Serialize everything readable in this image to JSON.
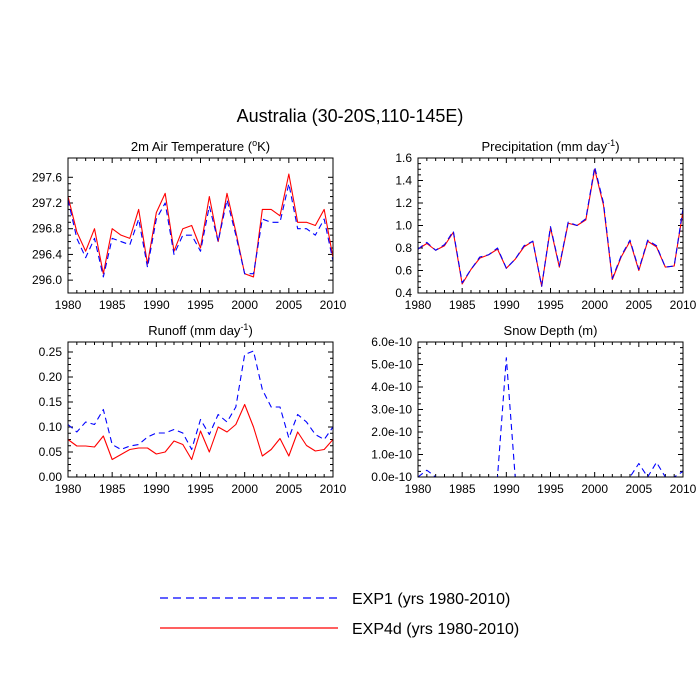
{
  "title": "Australia (30-20S,110-145E)",
  "legend": {
    "entries": [
      {
        "label": "EXP1 (yrs 1980-2010)",
        "color": "#0000ff",
        "dash": "dashed"
      },
      {
        "label": "EXP4d (yrs 1980-2010)",
        "color": "#ff0000",
        "dash": "solid"
      }
    ]
  },
  "chart_data": [
    {
      "type": "line",
      "title": "2m Air Temperature (°K)",
      "title_parts": {
        "main": "2m Air Temperature (",
        "sup": "o",
        "tail": "K)"
      },
      "x": [
        1980,
        1981,
        1982,
        1983,
        1984,
        1985,
        1986,
        1987,
        1988,
        1989,
        1990,
        1991,
        1992,
        1993,
        1994,
        1995,
        1996,
        1997,
        1998,
        1999,
        2000,
        2001,
        2002,
        2003,
        2004,
        2005,
        2006,
        2007,
        2008,
        2009,
        2010
      ],
      "xlim": [
        1980,
        2010
      ],
      "ylim": [
        295.8,
        297.9
      ],
      "xticks": [
        1980,
        1985,
        1990,
        1995,
        2000,
        2005,
        2010
      ],
      "xtick_labels": [
        "1980",
        "1985",
        "1990",
        "1995",
        "2000",
        "2005",
        "2010"
      ],
      "yticks": [
        296.0,
        296.4,
        296.8,
        297.2,
        297.6
      ],
      "ytick_labels": [
        "296.0",
        "296.4",
        "296.8",
        "297.2",
        "297.6"
      ],
      "series": [
        {
          "name": "EXP1",
          "values": [
            297.25,
            296.65,
            296.35,
            296.65,
            296.05,
            296.65,
            296.6,
            296.55,
            296.95,
            296.2,
            296.95,
            297.2,
            296.4,
            296.7,
            296.7,
            296.45,
            297.15,
            296.6,
            297.25,
            296.7,
            296.1,
            296.1,
            296.95,
            296.9,
            296.9,
            297.5,
            296.8,
            296.8,
            296.7,
            296.95,
            296.3
          ]
        },
        {
          "name": "EXP4d",
          "values": [
            297.3,
            296.75,
            296.45,
            296.8,
            296.1,
            296.8,
            296.7,
            296.65,
            297.1,
            296.25,
            297.05,
            297.35,
            296.45,
            296.8,
            296.85,
            296.5,
            297.3,
            296.6,
            297.35,
            296.75,
            296.1,
            296.05,
            297.1,
            297.1,
            297.0,
            297.65,
            296.9,
            296.9,
            296.85,
            297.1,
            296.35
          ]
        }
      ]
    },
    {
      "type": "line",
      "title": "Precipitation (mm day-1)",
      "title_parts": {
        "main": "Precipitation (mm day",
        "sup": "-1",
        "tail": ")"
      },
      "x": [
        1980,
        1981,
        1982,
        1983,
        1984,
        1985,
        1986,
        1987,
        1988,
        1989,
        1990,
        1991,
        1992,
        1993,
        1994,
        1995,
        1996,
        1997,
        1998,
        1999,
        2000,
        2001,
        2002,
        2003,
        2004,
        2005,
        2006,
        2007,
        2008,
        2009,
        2010
      ],
      "xlim": [
        1980,
        2010
      ],
      "ylim": [
        0.4,
        1.6
      ],
      "xticks": [
        1980,
        1985,
        1990,
        1995,
        2000,
        2005,
        2010
      ],
      "xtick_labels": [
        "1980",
        "1985",
        "1990",
        "1995",
        "2000",
        "2005",
        "2010"
      ],
      "yticks": [
        0.4,
        0.6,
        0.8,
        1.0,
        1.2,
        1.4,
        1.6
      ],
      "ytick_labels": [
        "0.4",
        "0.6",
        "0.8",
        "1.0",
        "1.2",
        "1.4",
        "1.6"
      ],
      "series": [
        {
          "name": "EXP1",
          "values": [
            0.79,
            0.85,
            0.78,
            0.83,
            0.95,
            0.49,
            0.61,
            0.72,
            0.74,
            0.8,
            0.62,
            0.7,
            0.82,
            0.86,
            0.46,
            0.99,
            0.64,
            1.03,
            1.0,
            1.06,
            1.52,
            1.2,
            0.53,
            0.73,
            0.87,
            0.61,
            0.87,
            0.82,
            0.63,
            0.64,
            1.15
          ]
        },
        {
          "name": "EXP4d",
          "values": [
            0.79,
            0.84,
            0.78,
            0.82,
            0.94,
            0.48,
            0.61,
            0.71,
            0.74,
            0.79,
            0.62,
            0.7,
            0.81,
            0.86,
            0.46,
            0.98,
            0.63,
            1.02,
            1.0,
            1.05,
            1.5,
            1.18,
            0.52,
            0.72,
            0.86,
            0.6,
            0.86,
            0.81,
            0.63,
            0.64,
            1.13
          ]
        }
      ]
    },
    {
      "type": "line",
      "title": "Runoff (mm day-1)",
      "title_parts": {
        "main": "Runoff (mm day",
        "sup": "-1",
        "tail": ")"
      },
      "x": [
        1980,
        1981,
        1982,
        1983,
        1984,
        1985,
        1986,
        1987,
        1988,
        1989,
        1990,
        1991,
        1992,
        1993,
        1994,
        1995,
        1996,
        1997,
        1998,
        1999,
        2000,
        2001,
        2002,
        2003,
        2004,
        2005,
        2006,
        2007,
        2008,
        2009,
        2010
      ],
      "xlim": [
        1980,
        2010
      ],
      "ylim": [
        0.0,
        0.27
      ],
      "xticks": [
        1980,
        1985,
        1990,
        1995,
        2000,
        2005,
        2010
      ],
      "xtick_labels": [
        "1980",
        "1985",
        "1990",
        "1995",
        "2000",
        "2005",
        "2010"
      ],
      "yticks": [
        0.0,
        0.05,
        0.1,
        0.15,
        0.2,
        0.25
      ],
      "ytick_labels": [
        "0.00",
        "0.05",
        "0.10",
        "0.15",
        "0.20",
        "0.25"
      ],
      "series": [
        {
          "name": "EXP1",
          "values": [
            0.105,
            0.09,
            0.11,
            0.105,
            0.135,
            0.065,
            0.055,
            0.062,
            0.065,
            0.08,
            0.088,
            0.088,
            0.095,
            0.088,
            0.055,
            0.115,
            0.085,
            0.125,
            0.11,
            0.14,
            0.245,
            0.252,
            0.175,
            0.14,
            0.14,
            0.078,
            0.125,
            0.11,
            0.085,
            0.075,
            0.1
          ]
        },
        {
          "name": "EXP4d",
          "values": [
            0.075,
            0.062,
            0.062,
            0.06,
            0.082,
            0.035,
            0.045,
            0.055,
            0.058,
            0.058,
            0.046,
            0.05,
            0.072,
            0.065,
            0.035,
            0.092,
            0.05,
            0.1,
            0.09,
            0.105,
            0.145,
            0.1,
            0.042,
            0.055,
            0.077,
            0.042,
            0.09,
            0.063,
            0.052,
            0.055,
            0.075
          ]
        }
      ]
    },
    {
      "type": "line",
      "title": "Snow Depth (m)",
      "title_parts": {
        "main": "Snow Depth (m)",
        "sup": "",
        "tail": ""
      },
      "x": [
        1980,
        1981,
        1982,
        1983,
        1984,
        1985,
        1986,
        1987,
        1988,
        1989,
        1990,
        1991,
        1992,
        1993,
        1994,
        1995,
        1996,
        1997,
        1998,
        1999,
        2000,
        2001,
        2002,
        2003,
        2004,
        2005,
        2006,
        2007,
        2008,
        2009,
        2010
      ],
      "xlim": [
        1980,
        2010
      ],
      "ylim": [
        0.0,
        6e-10
      ],
      "xticks": [
        1980,
        1985,
        1990,
        1995,
        2000,
        2005,
        2010
      ],
      "xtick_labels": [
        "1980",
        "1985",
        "1990",
        "1995",
        "2000",
        "2005",
        "2010"
      ],
      "yticks": [
        0.0,
        1e-10,
        2e-10,
        3e-10,
        4e-10,
        5e-10,
        6e-10
      ],
      "ytick_labels": [
        "0.0e-10",
        "1.0e-10",
        "2.0e-10",
        "3.0e-10",
        "4.0e-10",
        "5.0e-10",
        "6.0e-10"
      ],
      "series": [
        {
          "name": "EXP1",
          "values": [
            0,
            3e-11,
            0,
            0,
            0,
            0,
            0,
            0,
            0,
            0,
            5.3e-10,
            0,
            0,
            0,
            0,
            0,
            0,
            0,
            0,
            0,
            0,
            0,
            0,
            0,
            0,
            6e-11,
            0,
            6.5e-11,
            0,
            0,
            2.5e-11
          ]
        },
        {
          "name": "EXP4d",
          "values": [
            0,
            0,
            0,
            0,
            0,
            0,
            0,
            0,
            0,
            0,
            0,
            0,
            0,
            0,
            0,
            0,
            0,
            0,
            0,
            0,
            0,
            0,
            0,
            0,
            0,
            0,
            0,
            0,
            0,
            0,
            0
          ]
        }
      ]
    }
  ]
}
